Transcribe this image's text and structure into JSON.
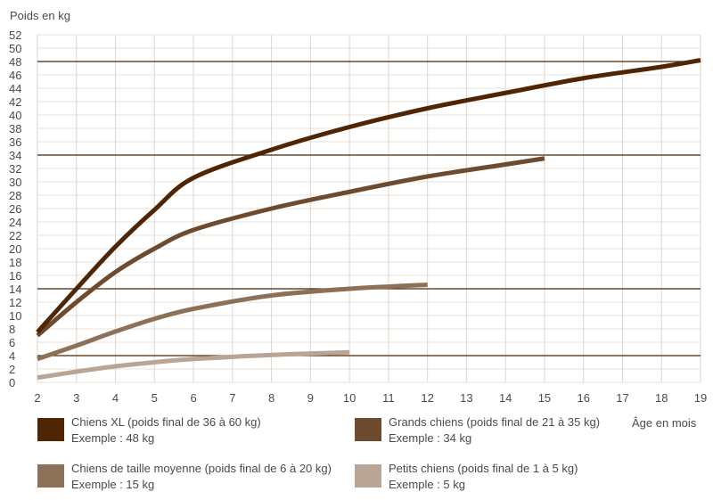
{
  "chart_data": {
    "type": "line",
    "ylabel": "Poids en kg",
    "xlabel": "Âge en mois",
    "xlim": [
      2,
      19
    ],
    "ylim": [
      0,
      52
    ],
    "x_ticks": [
      2,
      3,
      4,
      5,
      6,
      7,
      8,
      9,
      10,
      11,
      12,
      13,
      14,
      15,
      16,
      17,
      18,
      19
    ],
    "y_ticks": [
      0,
      2,
      4,
      6,
      8,
      10,
      12,
      14,
      16,
      18,
      20,
      22,
      24,
      26,
      28,
      30,
      32,
      34,
      36,
      38,
      40,
      42,
      44,
      46,
      48,
      50,
      52
    ],
    "grid": true,
    "reference_lines": [
      48,
      34,
      14,
      4
    ],
    "reference_color": "#4a2508",
    "series": [
      {
        "name": "Chiens XL (poids final de 36 à 60 kg)",
        "example": "Exemple : 48 kg",
        "color": "#4f2504",
        "x": [
          2,
          3,
          4,
          5,
          6,
          8,
          10,
          12,
          14,
          16,
          18,
          19
        ],
        "y": [
          7.5,
          14,
          20.3,
          25.8,
          30.6,
          34.8,
          38.2,
          41,
          43.3,
          45.5,
          47.2,
          48.2
        ]
      },
      {
        "name": "Grands chiens (poids final de 21 à 35 kg)",
        "example": "Exemple : 34 kg",
        "color": "#6e4a2e",
        "x": [
          2,
          3,
          4,
          5,
          6,
          8,
          10,
          12,
          14,
          15
        ],
        "y": [
          7,
          12,
          16.5,
          20,
          22.8,
          26,
          28.5,
          30.8,
          32.6,
          33.5
        ]
      },
      {
        "name": "Chiens de taille moyenne (poids final de 6 à 20 kg)",
        "example": "Exemple : 15 kg",
        "color": "#8d7058",
        "x": [
          2,
          3,
          4,
          5,
          6,
          8,
          10,
          12
        ],
        "y": [
          3.5,
          5.5,
          7.6,
          9.5,
          11,
          13,
          14,
          14.6
        ]
      },
      {
        "name": "Petits chiens (poids final de 1 à 5 kg)",
        "example": "Exemple : 5 kg",
        "color": "#b9a595",
        "x": [
          2,
          3,
          4,
          5,
          6,
          8,
          10
        ],
        "y": [
          0.7,
          1.6,
          2.4,
          3,
          3.5,
          4.1,
          4.5
        ]
      }
    ]
  }
}
